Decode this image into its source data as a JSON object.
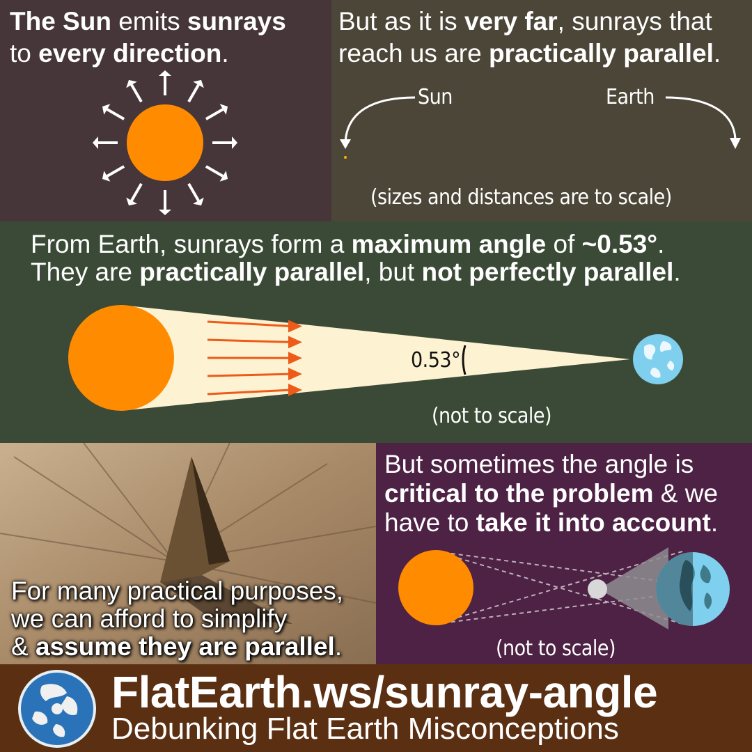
{
  "panel1": {
    "line1": [
      {
        "t": "The Sun",
        "b": true
      },
      {
        "t": " emits ",
        "b": false
      },
      {
        "t": "sunrays",
        "b": true
      }
    ],
    "line2": [
      {
        "t": "to ",
        "b": false
      },
      {
        "t": "every direction",
        "b": true
      },
      {
        "t": ".",
        "b": false
      }
    ],
    "sun_color": "#ff8c00"
  },
  "panel2": {
    "line1": [
      {
        "t": "But as it is ",
        "b": false
      },
      {
        "t": "very far",
        "b": true
      },
      {
        "t": ", sunrays that",
        "b": false
      }
    ],
    "line2": [
      {
        "t": "reach us are ",
        "b": false
      },
      {
        "t": "practically parallel",
        "b": true
      },
      {
        "t": ".",
        "b": false
      }
    ],
    "sun_label": "Sun",
    "earth_label": "Earth",
    "scale_note": "(sizes and distances are to scale)"
  },
  "panel3": {
    "line1": [
      {
        "t": "From Earth, sunrays form a ",
        "b": false
      },
      {
        "t": "maximum angle",
        "b": true
      },
      {
        "t": " of ",
        "b": false
      },
      {
        "t": "~0.53°",
        "b": true
      },
      {
        "t": ".",
        "b": false
      }
    ],
    "line2": [
      {
        "t": "They are ",
        "b": false
      },
      {
        "t": "practically parallel",
        "b": true
      },
      {
        "t": ", but ",
        "b": false
      },
      {
        "t": "not perfectly parallel",
        "b": true
      },
      {
        "t": ".",
        "b": false
      }
    ],
    "angle_label": "0.53°",
    "scale_note": "(not to scale)",
    "ray_color": "#ee5a18",
    "cone_color": "#fdf2d2"
  },
  "panel4": {
    "line1": [
      {
        "t": "For many practical purposes,",
        "b": false
      }
    ],
    "line2": [
      {
        "t": "we can afford to simplify",
        "b": false
      }
    ],
    "line3": [
      {
        "t": "& ",
        "b": false
      },
      {
        "t": "assume they are parallel",
        "b": true
      },
      {
        "t": ".",
        "b": false
      }
    ]
  },
  "panel5": {
    "line1": [
      {
        "t": "But sometimes the angle is",
        "b": false
      }
    ],
    "line2": [
      {
        "t": "critical to the problem",
        "b": true
      },
      {
        "t": " & we",
        "b": false
      }
    ],
    "line3": [
      {
        "t": "have to ",
        "b": false
      },
      {
        "t": "take it into account",
        "b": true
      },
      {
        "t": ".",
        "b": false
      }
    ],
    "scale_note": "(not to scale)"
  },
  "footer": {
    "title": "FlatEarth.ws/sunray-angle",
    "subtitle": "Debunking Flat Earth Misconceptions",
    "logo": "globe-logo-icon"
  },
  "colors": {
    "sun": "#ff8c00",
    "earth_ocean": "#7fd0ee",
    "panel1_bg": "#46363a",
    "panel2_bg": "#4c4638",
    "panel3_bg": "#3b4a36",
    "panel5_bg": "#4d2244",
    "footer_bg": "#5a2f12"
  }
}
